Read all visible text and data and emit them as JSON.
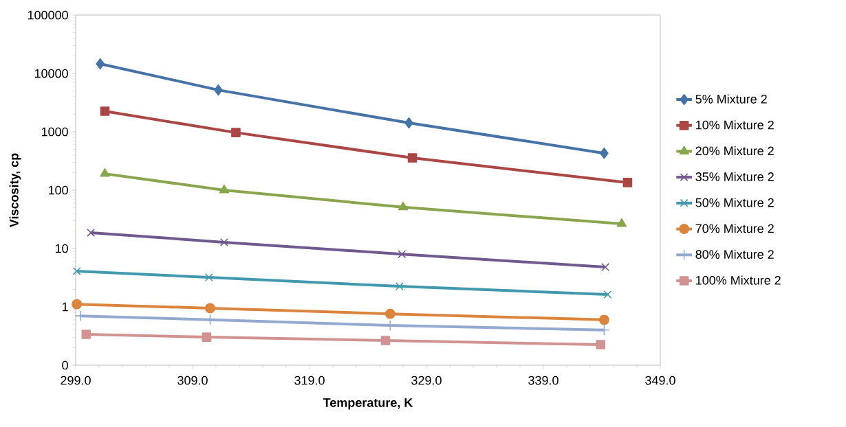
{
  "chart_data": {
    "type": "line",
    "xlabel": "Temperature, K",
    "ylabel": "Viscosity, cp",
    "log": "y",
    "grid": false,
    "legend": "right",
    "xlim": [
      299,
      349
    ],
    "xticks": [
      {
        "value": 299,
        "label": "299.0"
      },
      {
        "value": 309,
        "label": "309.0"
      },
      {
        "value": 319,
        "label": "319.0"
      },
      {
        "value": 329,
        "label": "329.0"
      },
      {
        "value": 339,
        "label": "339.0"
      },
      {
        "value": 349,
        "label": "349.0"
      }
    ],
    "ylim": [
      0.1,
      100000
    ],
    "yticks": [
      {
        "value": 0.1,
        "label": "0"
      },
      1,
      10,
      100,
      1000,
      10000,
      100000
    ],
    "series": [
      {
        "name": "5% Mixture 2",
        "color": "#4572a7",
        "marker": "diamond",
        "x": [
          301.1,
          311.2,
          327.5,
          344.2
        ],
        "values": [
          14600,
          5200,
          1420,
          430
        ]
      },
      {
        "name": "10% Mixture 2",
        "color": "#aa4643",
        "marker": "square",
        "x": [
          301.5,
          312.7,
          327.8,
          346.2
        ],
        "values": [
          2250,
          970,
          357,
          135
        ]
      },
      {
        "name": "20% Mixture 2",
        "color": "#89a54e",
        "marker": "triangle",
        "x": [
          301.5,
          311.7,
          327.0,
          345.7
        ],
        "values": [
          191,
          100,
          51,
          26.5
        ]
      },
      {
        "name": "35% Mixture 2",
        "color": "#71588f",
        "marker": "cross",
        "x": [
          300.3,
          311.7,
          326.9,
          344.3
        ],
        "values": [
          18.7,
          12.8,
          8.0,
          4.8
        ]
      },
      {
        "name": "50% Mixture 2",
        "color": "#4198af",
        "marker": "cross",
        "x": [
          299.1,
          310.4,
          326.7,
          344.5
        ],
        "values": [
          4.1,
          3.2,
          2.25,
          1.63
        ]
      },
      {
        "name": "70% Mixture 2",
        "color": "#db843d",
        "marker": "circle",
        "x": [
          299.1,
          310.5,
          325.9,
          344.2
        ],
        "values": [
          1.11,
          0.95,
          0.76,
          0.6
        ]
      },
      {
        "name": "80% Mixture 2",
        "color": "#93a9cf",
        "marker": "plus",
        "x": [
          299.4,
          310.5,
          325.9,
          344.2
        ],
        "values": [
          0.7,
          0.6,
          0.48,
          0.4
        ]
      },
      {
        "name": "100% Mixture 2",
        "color": "#d19392",
        "marker": "square",
        "x": [
          299.9,
          310.2,
          325.5,
          343.9
        ],
        "values": [
          0.338,
          0.303,
          0.265,
          0.225
        ]
      }
    ]
  }
}
